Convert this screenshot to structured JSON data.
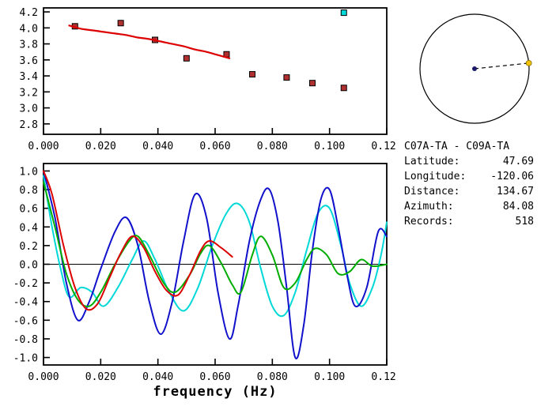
{
  "info_panel": {
    "title": "C07A-TA - C09A-TA",
    "lines": [
      {
        "label": "Latitude:",
        "value": "47.69"
      },
      {
        "label": "Longitude:",
        "value": "-120.06"
      },
      {
        "label": "Distance:",
        "value": "134.67"
      },
      {
        "label": "Azimuth:",
        "value": "84.08"
      },
      {
        "label": "Records:",
        "value": "518"
      }
    ]
  },
  "azimuth_plot": {
    "azimuth_deg": 84.08,
    "center_dot_color": "#1a1a66",
    "station_dot_color": "#f2c200",
    "line_style": "dashed"
  },
  "colors": {
    "marker_red": "#b03030",
    "marker_cyan": "#00d8d8",
    "curve_red": "#dd0000",
    "curve_blue": "#1111cc",
    "curve_cyan": "#00d8d8",
    "curve_green": "#00ad00",
    "axis": "#000000"
  },
  "chart_data": [
    {
      "id": "group-velocity-dispersion",
      "type": "scatter",
      "title": "",
      "xlabel": "",
      "ylabel": "",
      "xlim": [
        0,
        0.12
      ],
      "ylim": [
        2.67,
        4.25
      ],
      "xticks": [
        0,
        0.02,
        0.04,
        0.06,
        0.08,
        0.1,
        0.12
      ],
      "yticks": [
        2.8,
        3.0,
        3.2,
        3.4,
        3.6,
        3.8,
        4.0,
        4.2
      ],
      "xtick_decimals": 3,
      "ytick_decimals": 1,
      "grid": false,
      "zero_line": false,
      "series": [
        {
          "name": "measured-dispersion-points",
          "type": "scatter-square",
          "color": "#b03030",
          "points": [
            [
              0.011,
              4.02
            ],
            [
              0.027,
              4.06
            ],
            [
              0.039,
              3.85
            ],
            [
              0.05,
              3.62
            ],
            [
              0.064,
              3.67
            ],
            [
              0.073,
              3.42
            ],
            [
              0.085,
              3.38
            ],
            [
              0.094,
              3.31
            ],
            [
              0.105,
              3.25
            ]
          ]
        },
        {
          "name": "outlier-point",
          "type": "scatter-square",
          "color": "#00d8d8",
          "points": [
            [
              0.105,
              4.19
            ]
          ]
        },
        {
          "name": "reference-dispersion-curve",
          "type": "line",
          "color": "#dd0000",
          "width": 2.2,
          "points": [
            [
              0.009,
              4.03
            ],
            [
              0.013,
              3.99
            ],
            [
              0.017,
              3.97
            ],
            [
              0.021,
              3.95
            ],
            [
              0.025,
              3.93
            ],
            [
              0.029,
              3.91
            ],
            [
              0.033,
              3.88
            ],
            [
              0.037,
              3.86
            ],
            [
              0.041,
              3.83
            ],
            [
              0.045,
              3.8
            ],
            [
              0.049,
              3.77
            ],
            [
              0.053,
              3.73
            ],
            [
              0.057,
              3.7
            ],
            [
              0.061,
              3.66
            ],
            [
              0.065,
              3.62
            ]
          ]
        }
      ]
    },
    {
      "id": "filtered-waveforms",
      "type": "line",
      "title": "",
      "xlabel": "frequency (Hz)",
      "ylabel": "",
      "xlim": [
        0,
        0.12
      ],
      "ylim": [
        -1.08,
        1.08
      ],
      "xticks": [
        0,
        0.02,
        0.04,
        0.06,
        0.08,
        0.1,
        0.12
      ],
      "yticks": [
        -1.0,
        -0.8,
        -0.6,
        -0.4,
        -0.2,
        0.0,
        0.2,
        0.4,
        0.6,
        0.8,
        1.0
      ],
      "xtick_decimals": 3,
      "ytick_decimals": 1,
      "grid": false,
      "zero_line": true,
      "series": [
        {
          "name": "waveform-cyan",
          "type": "line",
          "color": "#00d8d8",
          "width": 2,
          "points": [
            [
              0,
              0.95
            ],
            [
              0.003,
              0.4
            ],
            [
              0.006,
              -0.05
            ],
            [
              0.009,
              -0.35
            ],
            [
              0.013,
              -0.25
            ],
            [
              0.017,
              -0.3
            ],
            [
              0.021,
              -0.45
            ],
            [
              0.026,
              -0.25
            ],
            [
              0.031,
              0.05
            ],
            [
              0.035,
              0.25
            ],
            [
              0.039,
              0.05
            ],
            [
              0.044,
              -0.3
            ],
            [
              0.049,
              -0.5
            ],
            [
              0.054,
              -0.25
            ],
            [
              0.059,
              0.2
            ],
            [
              0.064,
              0.55
            ],
            [
              0.068,
              0.65
            ],
            [
              0.072,
              0.45
            ],
            [
              0.076,
              -0.05
            ],
            [
              0.08,
              -0.45
            ],
            [
              0.084,
              -0.55
            ],
            [
              0.088,
              -0.3
            ],
            [
              0.092,
              0.15
            ],
            [
              0.096,
              0.55
            ],
            [
              0.1,
              0.6
            ],
            [
              0.104,
              0.2
            ],
            [
              0.107,
              -0.2
            ],
            [
              0.111,
              -0.45
            ],
            [
              0.115,
              -0.25
            ],
            [
              0.118,
              0.1
            ],
            [
              0.12,
              0.45
            ]
          ]
        },
        {
          "name": "waveform-blue",
          "type": "line",
          "color": "#1111cc",
          "width": 2,
          "points": [
            [
              0,
              1.0
            ],
            [
              0.004,
              0.5
            ],
            [
              0.008,
              -0.2
            ],
            [
              0.012,
              -0.6
            ],
            [
              0.016,
              -0.4
            ],
            [
              0.02,
              -0.05
            ],
            [
              0.025,
              0.35
            ],
            [
              0.029,
              0.5
            ],
            [
              0.033,
              0.2
            ],
            [
              0.037,
              -0.4
            ],
            [
              0.041,
              -0.75
            ],
            [
              0.045,
              -0.4
            ],
            [
              0.049,
              0.25
            ],
            [
              0.053,
              0.75
            ],
            [
              0.057,
              0.5
            ],
            [
              0.061,
              -0.3
            ],
            [
              0.065,
              -0.8
            ],
            [
              0.068,
              -0.45
            ],
            [
              0.072,
              0.25
            ],
            [
              0.076,
              0.7
            ],
            [
              0.079,
              0.8
            ],
            [
              0.082,
              0.45
            ],
            [
              0.085,
              -0.25
            ],
            [
              0.088,
              -1.0
            ],
            [
              0.091,
              -0.65
            ],
            [
              0.094,
              0.15
            ],
            [
              0.097,
              0.7
            ],
            [
              0.1,
              0.8
            ],
            [
              0.103,
              0.4
            ],
            [
              0.106,
              -0.1
            ],
            [
              0.109,
              -0.45
            ],
            [
              0.113,
              -0.25
            ],
            [
              0.117,
              0.35
            ],
            [
              0.12,
              0.3
            ]
          ]
        },
        {
          "name": "waveform-green",
          "type": "line",
          "color": "#00ad00",
          "width": 2,
          "points": [
            [
              0,
              0.88
            ],
            [
              0.004,
              0.4
            ],
            [
              0.008,
              -0.1
            ],
            [
              0.012,
              -0.38
            ],
            [
              0.016,
              -0.45
            ],
            [
              0.02,
              -0.3
            ],
            [
              0.025,
              0.0
            ],
            [
              0.03,
              0.25
            ],
            [
              0.033,
              0.3
            ],
            [
              0.037,
              0.1
            ],
            [
              0.042,
              -0.2
            ],
            [
              0.046,
              -0.3
            ],
            [
              0.051,
              -0.12
            ],
            [
              0.055,
              0.12
            ],
            [
              0.058,
              0.2
            ],
            [
              0.062,
              0.02
            ],
            [
              0.066,
              -0.22
            ],
            [
              0.069,
              -0.3
            ],
            [
              0.073,
              0.1
            ],
            [
              0.076,
              0.3
            ],
            [
              0.08,
              0.1
            ],
            [
              0.084,
              -0.25
            ],
            [
              0.088,
              -0.2
            ],
            [
              0.092,
              0.05
            ],
            [
              0.095,
              0.17
            ],
            [
              0.099,
              0.1
            ],
            [
              0.103,
              -0.1
            ],
            [
              0.107,
              -0.08
            ],
            [
              0.111,
              0.05
            ],
            [
              0.115,
              -0.02
            ],
            [
              0.12,
              0.0
            ]
          ]
        },
        {
          "name": "waveform-red",
          "type": "line",
          "color": "#dd0000",
          "width": 2,
          "points": [
            [
              0,
              1.0
            ],
            [
              0.003,
              0.75
            ],
            [
              0.007,
              0.2
            ],
            [
              0.011,
              -0.25
            ],
            [
              0.015,
              -0.48
            ],
            [
              0.019,
              -0.42
            ],
            [
              0.023,
              -0.15
            ],
            [
              0.027,
              0.12
            ],
            [
              0.031,
              0.3
            ],
            [
              0.035,
              0.18
            ],
            [
              0.039,
              -0.08
            ],
            [
              0.043,
              -0.28
            ],
            [
              0.047,
              -0.33
            ],
            [
              0.051,
              -0.12
            ],
            [
              0.055,
              0.15
            ],
            [
              0.058,
              0.25
            ],
            [
              0.062,
              0.18
            ],
            [
              0.066,
              0.08
            ]
          ]
        }
      ]
    }
  ]
}
